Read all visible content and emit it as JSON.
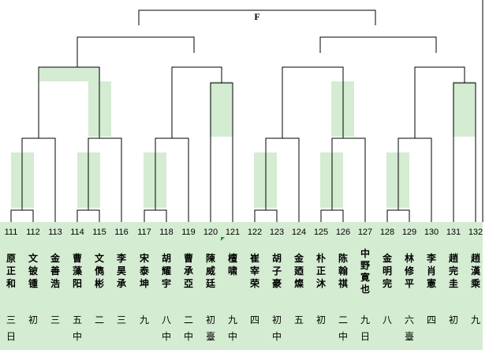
{
  "title": "F",
  "colors": {
    "panel": "#d4ecd2",
    "line": "#000000",
    "marker": "#2e8b3a"
  },
  "players": [
    {
      "seed": "111",
      "name": "原正和",
      "rank": "三",
      "place": "日"
    },
    {
      "seed": "112",
      "name": "文铍锺",
      "rank": "初",
      "place": ""
    },
    {
      "seed": "113",
      "name": "金善浩",
      "rank": "三",
      "place": ""
    },
    {
      "seed": "114",
      "name": "曹藻阳",
      "rank": "五",
      "place": "中"
    },
    {
      "seed": "115",
      "name": "文儁彬",
      "rank": "二",
      "place": ""
    },
    {
      "seed": "116",
      "name": "李昊承",
      "rank": "三",
      "place": ""
    },
    {
      "seed": "117",
      "name": "宋泰坤",
      "rank": "九",
      "place": ""
    },
    {
      "seed": "118",
      "name": "胡耀宇",
      "rank": "八",
      "place": "中"
    },
    {
      "seed": "119",
      "name": "曹承亞",
      "rank": "二",
      "place": "中"
    },
    {
      "seed": "120",
      "name": "陳威廷",
      "rank": "初",
      "place": "臺"
    },
    {
      "seed": "121",
      "name": "檀啸",
      "rank": "九",
      "place": "中"
    },
    {
      "seed": "122",
      "name": "崔宰荣",
      "rank": "四",
      "place": ""
    },
    {
      "seed": "123",
      "name": "胡子豪",
      "rank": "初",
      "place": "中"
    },
    {
      "seed": "124",
      "name": "金廼燦",
      "rank": "五",
      "place": ""
    },
    {
      "seed": "125",
      "name": "朴正沐",
      "rank": "初",
      "place": ""
    },
    {
      "seed": "126",
      "name": "陈翰祺",
      "rank": "二",
      "place": "中"
    },
    {
      "seed": "127",
      "name": "中野寛也",
      "rank": "九",
      "place": "日"
    },
    {
      "seed": "128",
      "name": "金明完",
      "rank": "八",
      "place": ""
    },
    {
      "seed": "129",
      "name": "林修平",
      "rank": "六",
      "place": "臺"
    },
    {
      "seed": "130",
      "name": "李肖憲",
      "rank": "四",
      "place": ""
    },
    {
      "seed": "131",
      "name": "趙完圭",
      "rank": "初",
      "place": ""
    },
    {
      "seed": "132",
      "name": "趙漢乘",
      "rank": "九",
      "place": ""
    }
  ]
}
